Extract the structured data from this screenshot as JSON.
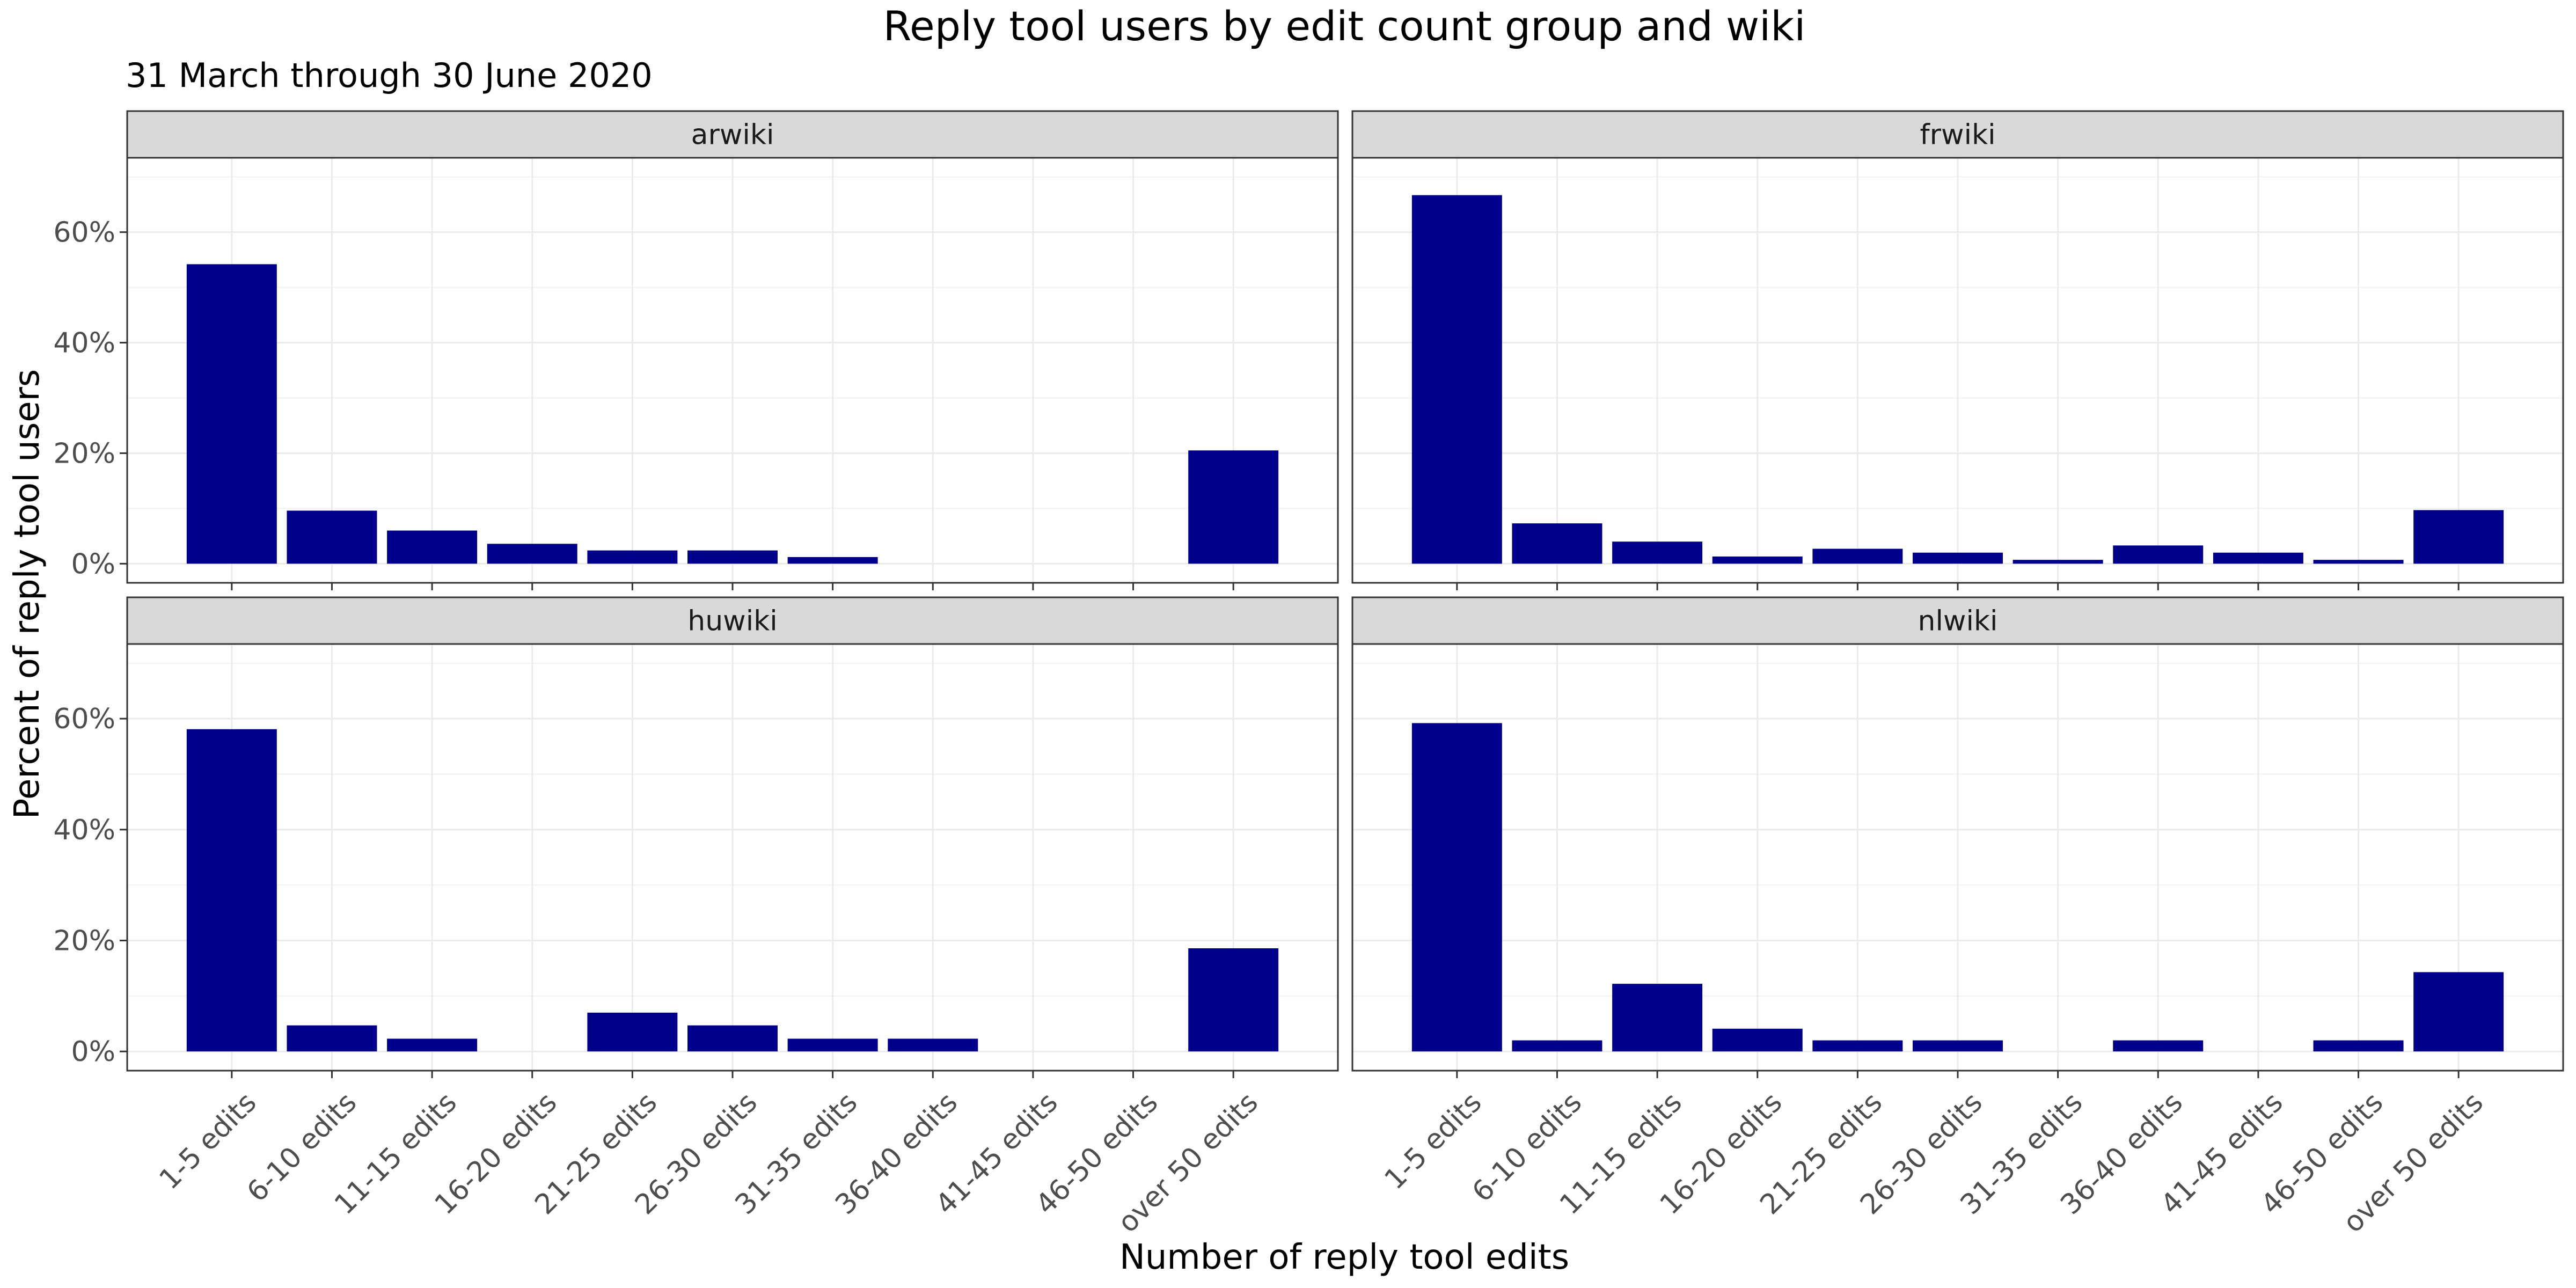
{
  "chart_data": {
    "type": "bar",
    "title": "Reply tool users by edit count group and wiki",
    "subtitle": "31 March through 30 June 2020",
    "xlabel": "Number of reply tool edits",
    "ylabel": "Percent of reply tool users",
    "ylim": [
      0,
      0.7
    ],
    "y_ticks": [
      0,
      0.2,
      0.4,
      0.6
    ],
    "y_tick_labels": [
      "0%",
      "20%",
      "40%",
      "60%"
    ],
    "grid": true,
    "bar_color": "#00008B",
    "categories": [
      "1-5 edits",
      "6-10 edits",
      "11-15 edits",
      "16-20 edits",
      "21-25 edits",
      "26-30 edits",
      "31-35 edits",
      "36-40 edits",
      "41-45 edits",
      "46-50 edits",
      "over 50 edits"
    ],
    "facets": [
      {
        "name": "arwiki",
        "values": [
          0.542,
          0.096,
          0.06,
          0.036,
          0.024,
          0.024,
          0.012,
          0,
          0,
          0,
          0.205
        ]
      },
      {
        "name": "frwiki",
        "values": [
          0.667,
          0.073,
          0.04,
          0.013,
          0.027,
          0.02,
          0.007,
          0.033,
          0.02,
          0.007,
          0.097
        ]
      },
      {
        "name": "huwiki",
        "values": [
          0.581,
          0.047,
          0.023,
          0,
          0.07,
          0.047,
          0.023,
          0.023,
          0,
          0,
          0.186
        ]
      },
      {
        "name": "nlwiki",
        "values": [
          0.592,
          0.02,
          0.122,
          0.041,
          0.02,
          0.02,
          0,
          0.02,
          0,
          0.02,
          0.143
        ]
      }
    ]
  }
}
